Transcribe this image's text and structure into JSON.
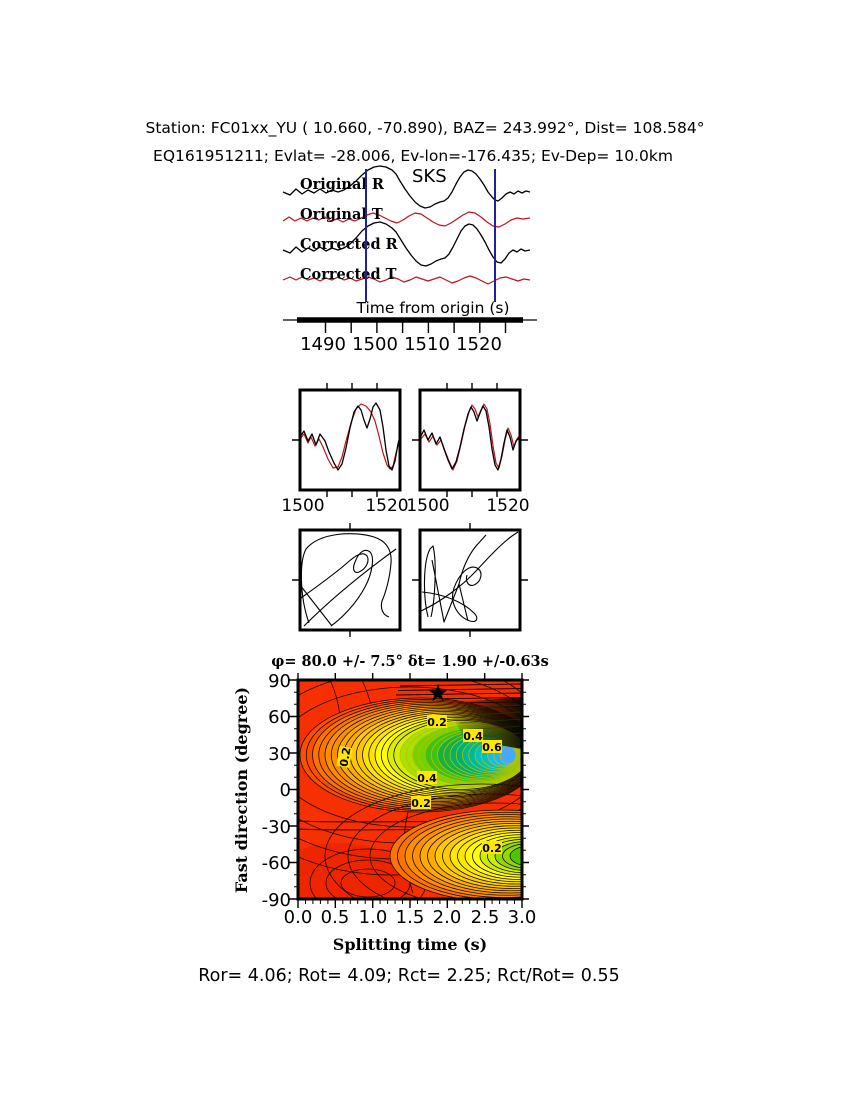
{
  "header": {
    "line1": "Station: FC01xx_YU (  10.660,  -70.890), BAZ=  243.992°, Dist=  108.584°",
    "line2": "EQ161951211; Evlat= -28.006, Ev-lon=-176.435; Ev-Dep= 10.0km"
  },
  "seismogram": {
    "phase_label": "SKS",
    "trace_labels": [
      "Original R",
      "Original T",
      "Corrected R",
      "Corrected T"
    ],
    "xlabel": "Time from origin (s)",
    "x_ticks": [
      "1490",
      "1500",
      "1510",
      "1520"
    ]
  },
  "compare": {
    "left_ticks": [
      "1500",
      "1520"
    ],
    "right_ticks": [
      "1500",
      "1520"
    ]
  },
  "contour": {
    "title": "φ= 80.0 +/- 7.5° δt= 1.90 +/-0.63s",
    "xlabel": "Splitting time (s)",
    "ylabel": "Fast direction (degree)",
    "x_ticks": [
      "0.0",
      "0.5",
      "1.0",
      "1.5",
      "2.0",
      "2.5",
      "3.0"
    ],
    "y_ticks": [
      "90",
      "60",
      "30",
      "0",
      "-30",
      "-60",
      "-90"
    ],
    "annotations": [
      "0.2",
      "0.4",
      "0.6",
      "0.2",
      "0.4",
      "0.2",
      "0.2"
    ],
    "star": "★"
  },
  "footer": {
    "stats": "Ror= 4.06; Rot= 4.09; Rct= 2.25; Rct/Rot= 0.55"
  },
  "chart_data": [
    {
      "type": "line",
      "title": "Original and corrected seismogram traces",
      "traces": [
        "Original R",
        "Original T",
        "Corrected R",
        "Corrected T"
      ],
      "trace_colors": [
        "#000000",
        "#c2121e",
        "#000000",
        "#c2121e"
      ],
      "phase_marker": "SKS",
      "xlabel": "Time from origin (s)",
      "x_ticks": [
        1490,
        1500,
        1510,
        1520
      ],
      "x_range": [
        1485,
        1529
      ],
      "pick_window_s": [
        1498,
        1523
      ],
      "pick_window_color": "#2020a0"
    },
    {
      "type": "line",
      "title": "Fast/slow component overlay panels",
      "panels": [
        {
          "x_ticks": [
            1500,
            1520
          ]
        },
        {
          "x_ticks": [
            1500,
            1520
          ]
        }
      ],
      "series_colors": [
        "#000000",
        "#c2121e"
      ]
    },
    {
      "type": "scatter",
      "title": "Particle motion panels (original, corrected)",
      "panels": 2
    },
    {
      "type": "heatmap",
      "title": "φ= 80.0 +/- 7.5° δt= 1.90 +/-0.63s",
      "xlabel": "Splitting time (s)",
      "ylabel": "Fast direction (degree)",
      "x_range": [
        0.0,
        3.0
      ],
      "y_range": [
        -90,
        90
      ],
      "x_ticks": [
        0.0,
        0.5,
        1.0,
        1.5,
        2.0,
        2.5,
        3.0
      ],
      "y_ticks": [
        90,
        60,
        30,
        0,
        -30,
        -60,
        -90
      ],
      "contour_levels": [
        0.2,
        0.4,
        0.6
      ],
      "best_solution": {
        "phi_deg": 80.0,
        "phi_err_deg": 7.5,
        "dt_s": 1.9,
        "dt_err_s": 0.63,
        "marker": "black star",
        "marker_x": 1.9,
        "marker_y": 80
      },
      "energy_minimum": {
        "x": 2.9,
        "y": 22
      },
      "secondary_minimum": {
        "x": 3.0,
        "y": -65
      },
      "colormap": "red(high) -> orange -> yellow -> green -> cyan -> blue(low)"
    },
    {
      "type": "table",
      "title": "Splitting quality statistics",
      "values": {
        "Ror": 4.06,
        "Rot": 4.09,
        "Rct": 2.25,
        "Rct/Rot": 0.55
      }
    }
  ]
}
